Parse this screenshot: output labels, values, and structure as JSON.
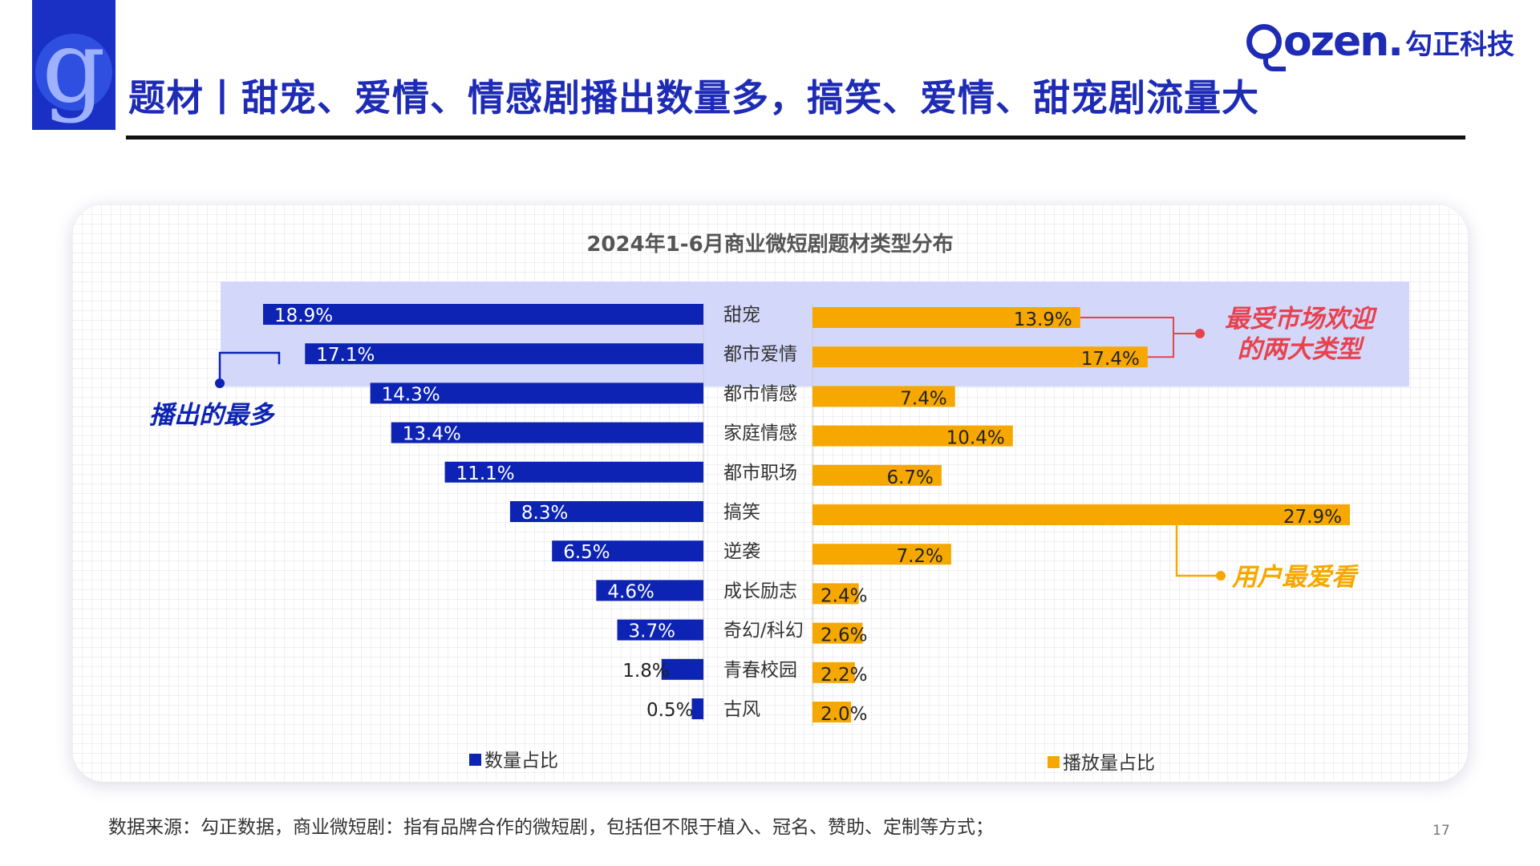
{
  "header": {
    "title": "题材丨甜宠、爱情、情感剧播出数量多，搞笑、爱情、甜宠剧流量大",
    "logo_letter": "g",
    "brand_en": "ozen.",
    "brand_cn": "勾正科技"
  },
  "chart_data": {
    "type": "bar",
    "title": "2024年1-6月商业微短剧题材类型分布",
    "categories": [
      "甜宠",
      "都市爱情",
      "都市情感",
      "家庭情感",
      "都市职场",
      "搞笑",
      "逆袭",
      "成长励志",
      "奇幻/科幻",
      "青春校园",
      "古风"
    ],
    "series": [
      {
        "name": "数量占比",
        "color": "#0c23b3",
        "values": [
          18.9,
          17.1,
          14.3,
          13.4,
          11.1,
          8.3,
          6.5,
          4.6,
          3.7,
          1.8,
          0.5
        ],
        "labels": [
          "18.9%",
          "17.1%",
          "14.3%",
          "13.4%",
          "11.1%",
          "8.3%",
          "6.5%",
          "4.6%",
          "3.7%",
          "1.8%",
          "0.5%"
        ]
      },
      {
        "name": "播放量占比",
        "color": "#f7a800",
        "values": [
          13.9,
          17.4,
          7.4,
          10.4,
          6.7,
          27.9,
          7.2,
          2.4,
          2.6,
          2.2,
          2.0
        ],
        "labels": [
          "13.9%",
          "17.4%",
          "7.4%",
          "10.4%",
          "6.7%",
          "27.9%",
          "7.2%",
          "2.4%",
          "2.6%",
          "2.2%",
          "2.0%"
        ]
      }
    ],
    "highlight_categories": [
      "甜宠",
      "都市爱情"
    ],
    "highlight_color": "#d3d8fb",
    "annotations": [
      {
        "text": "播出的最多",
        "color": "#0c23b3"
      },
      {
        "text": "最受市场欢迎\n的两大类型",
        "color": "#e8424e"
      },
      {
        "text": "用户最爱看",
        "color": "#f7a800"
      }
    ],
    "legend": [
      {
        "label": "数量占比",
        "color": "#0c23b3"
      },
      {
        "label": "播放量占比",
        "color": "#f7a800"
      }
    ],
    "legend_position": "bottom",
    "grid": true
  },
  "footnote": "数据来源：勾正数据，商业微短剧：指有品牌合作的微短剧，包括但不限于植入、冠名、赞助、定制等方式；",
  "page_number": "17"
}
